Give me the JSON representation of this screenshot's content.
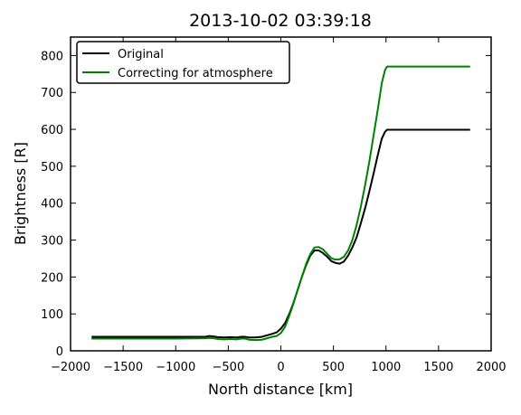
{
  "chart_data": {
    "type": "line",
    "title": "2013-10-02 03:39:18",
    "xlabel": "North distance [km]",
    "ylabel": "Brightness [R]",
    "xlim": [
      -2000,
      2000
    ],
    "ylim": [
      0,
      850
    ],
    "xticks": [
      -2000,
      -1500,
      -1000,
      -500,
      0,
      500,
      1000,
      1500,
      2000
    ],
    "yticks": [
      0,
      100,
      200,
      300,
      400,
      500,
      600,
      700,
      800
    ],
    "xtick_labels": [
      "−2000",
      "−1500",
      "−1000",
      "−500",
      "0",
      "500",
      "1000",
      "1500",
      "2000"
    ],
    "ytick_labels": [
      "0",
      "100",
      "200",
      "300",
      "400",
      "500",
      "600",
      "700",
      "800"
    ],
    "grid": false,
    "legend_position": "top-left",
    "series": [
      {
        "name": "Original",
        "color": "#000000",
        "points": [
          [
            -1800,
            38
          ],
          [
            -1000,
            38
          ],
          [
            -720,
            38
          ],
          [
            -680,
            40
          ],
          [
            -640,
            39
          ],
          [
            -600,
            37
          ],
          [
            -540,
            36
          ],
          [
            -480,
            37
          ],
          [
            -420,
            36
          ],
          [
            -380,
            38
          ],
          [
            -340,
            38
          ],
          [
            -300,
            36
          ],
          [
            -240,
            36
          ],
          [
            -180,
            38
          ],
          [
            -130,
            42
          ],
          [
            -80,
            46
          ],
          [
            -40,
            50
          ],
          [
            0,
            60
          ],
          [
            40,
            75
          ],
          [
            80,
            100
          ],
          [
            120,
            130
          ],
          [
            160,
            165
          ],
          [
            200,
            200
          ],
          [
            240,
            232
          ],
          [
            280,
            258
          ],
          [
            320,
            272
          ],
          [
            360,
            272
          ],
          [
            400,
            265
          ],
          [
            440,
            255
          ],
          [
            480,
            243
          ],
          [
            520,
            238
          ],
          [
            560,
            236
          ],
          [
            600,
            242
          ],
          [
            640,
            258
          ],
          [
            680,
            280
          ],
          [
            720,
            307
          ],
          [
            760,
            345
          ],
          [
            800,
            385
          ],
          [
            840,
            430
          ],
          [
            880,
            478
          ],
          [
            920,
            528
          ],
          [
            960,
            575
          ],
          [
            990,
            593
          ],
          [
            1010,
            599
          ],
          [
            1800,
            599
          ]
        ]
      },
      {
        "name": "Correcting for atmosphere",
        "color": "#008000",
        "points": [
          [
            -1800,
            33
          ],
          [
            -1000,
            33
          ],
          [
            -720,
            34
          ],
          [
            -680,
            35
          ],
          [
            -640,
            34
          ],
          [
            -600,
            32
          ],
          [
            -540,
            31
          ],
          [
            -480,
            32
          ],
          [
            -420,
            31
          ],
          [
            -380,
            33
          ],
          [
            -340,
            33
          ],
          [
            -300,
            30
          ],
          [
            -240,
            29
          ],
          [
            -180,
            30
          ],
          [
            -130,
            34
          ],
          [
            -80,
            38
          ],
          [
            -40,
            40
          ],
          [
            0,
            48
          ],
          [
            40,
            65
          ],
          [
            80,
            95
          ],
          [
            120,
            128
          ],
          [
            160,
            165
          ],
          [
            200,
            200
          ],
          [
            240,
            235
          ],
          [
            280,
            262
          ],
          [
            320,
            280
          ],
          [
            360,
            281
          ],
          [
            400,
            275
          ],
          [
            440,
            263
          ],
          [
            480,
            251
          ],
          [
            520,
            247
          ],
          [
            560,
            248
          ],
          [
            600,
            255
          ],
          [
            640,
            272
          ],
          [
            680,
            300
          ],
          [
            720,
            340
          ],
          [
            760,
            390
          ],
          [
            800,
            447
          ],
          [
            840,
            510
          ],
          [
            880,
            580
          ],
          [
            920,
            650
          ],
          [
            960,
            725
          ],
          [
            990,
            760
          ],
          [
            1010,
            770
          ],
          [
            1800,
            770
          ]
        ]
      }
    ]
  }
}
